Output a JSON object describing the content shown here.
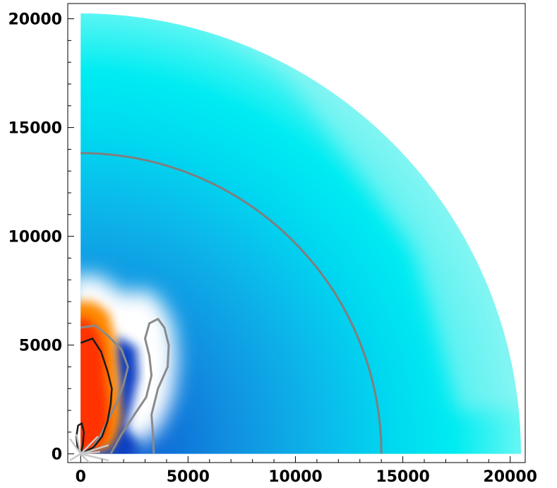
{
  "chart_data": {
    "type": "heatmap",
    "title": "",
    "xlabel": "",
    "ylabel": "",
    "xlim": [
      -600,
      20700
    ],
    "ylim": [
      -400,
      20700
    ],
    "x_ticks": [
      0,
      5000,
      10000,
      15000,
      20000
    ],
    "y_ticks": [
      0,
      5000,
      10000,
      15000,
      20000
    ],
    "x_tick_labels": [
      "0",
      "5000",
      "10000",
      "15000",
      "20000"
    ],
    "y_tick_labels": [
      "0",
      "5000",
      "10000",
      "15000",
      "20000"
    ],
    "domain": {
      "shape": "quarter-disk",
      "outer_radius": 20500
    },
    "colors": {
      "outer_background": "#8ff3f3",
      "mid_cyan": "#00e6ef",
      "inner_blue": "#118fe0",
      "deep_blue": "#0a47c8",
      "white_region": "#ffffff",
      "warm_orange": "#ff8a00",
      "hot_red": "#ff3300",
      "contour_gray": "#7f7f7f",
      "contour_dark": "#1a1a1a"
    },
    "contours": {
      "circle_radius": 14000,
      "gray_outer": [
        [
          3400,
          0
        ],
        [
          3380,
          700
        ],
        [
          3300,
          1800
        ],
        [
          3600,
          3000
        ],
        [
          4050,
          4000
        ],
        [
          4100,
          5000
        ],
        [
          3900,
          5800
        ],
        [
          3600,
          6200
        ],
        [
          3200,
          6000
        ],
        [
          3000,
          5300
        ],
        [
          3200,
          4500
        ],
        [
          3300,
          3600
        ],
        [
          3050,
          2600
        ],
        [
          2500,
          1800
        ],
        [
          1900,
          900
        ],
        [
          1400,
          0
        ]
      ],
      "gray_inner": [
        [
          0,
          5800
        ],
        [
          700,
          5900
        ],
        [
          1300,
          5400
        ],
        [
          1900,
          4800
        ],
        [
          2200,
          4000
        ],
        [
          2000,
          3200
        ],
        [
          1700,
          2400
        ],
        [
          1300,
          1600
        ],
        [
          900,
          800
        ],
        [
          500,
          200
        ],
        [
          0,
          0
        ]
      ],
      "black_line": [
        [
          0,
          5100
        ],
        [
          550,
          5300
        ],
        [
          950,
          4700
        ],
        [
          1250,
          3800
        ],
        [
          1450,
          3000
        ],
        [
          1400,
          2300
        ],
        [
          1250,
          1500
        ],
        [
          1000,
          800
        ],
        [
          600,
          300
        ],
        [
          0,
          0
        ]
      ],
      "black_loop": [
        [
          0,
          0
        ],
        [
          -150,
          300
        ],
        [
          -200,
          800
        ],
        [
          -120,
          1300
        ],
        [
          50,
          1400
        ],
        [
          150,
          1000
        ],
        [
          100,
          400
        ],
        [
          0,
          0
        ]
      ]
    }
  }
}
